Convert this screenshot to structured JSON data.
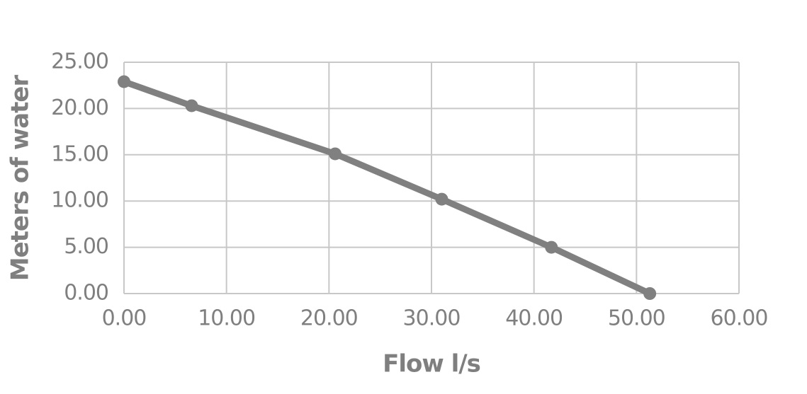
{
  "chart_data": {
    "type": "line",
    "x_label": "Flow l/s",
    "y_label": "Meters of water",
    "x": [
      0,
      6.6,
      20.6,
      31.0,
      41.7,
      51.3
    ],
    "series": [
      {
        "color": "#808080",
        "values": [
          22.9,
          20.3,
          15.1,
          10.2,
          5.0,
          0
        ]
      }
    ],
    "xlim": [
      0,
      60
    ],
    "ylim": [
      0,
      25
    ],
    "xticks": [
      {
        "value": 0,
        "label": "0.00"
      },
      {
        "value": 10,
        "label": "10.00"
      },
      {
        "value": 20,
        "label": "20.00"
      },
      {
        "value": 30,
        "label": "30.00"
      },
      {
        "value": 40,
        "label": "40.00"
      },
      {
        "value": 50,
        "label": "50.00"
      },
      {
        "value": 60,
        "label": "60.00"
      }
    ],
    "yticks": [
      {
        "value": 0,
        "label": "0.00"
      },
      {
        "value": 5,
        "label": "5.00"
      },
      {
        "value": 10,
        "label": "10.00"
      },
      {
        "value": 15,
        "label": "15.00"
      },
      {
        "value": 20,
        "label": "20.00"
      },
      {
        "value": 25,
        "label": "25.00"
      }
    ],
    "grid": true
  }
}
